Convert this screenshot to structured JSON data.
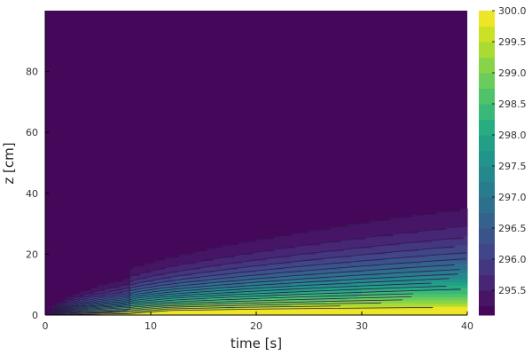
{
  "chart_data": {
    "type": "heatmap",
    "subtype": "filled-contour",
    "title": "",
    "xlabel": "time [s]",
    "ylabel": "z [cm]",
    "xlim": [
      0,
      40
    ],
    "ylim": [
      0,
      100
    ],
    "x_ticks": [
      0,
      10,
      20,
      30,
      40
    ],
    "y_ticks": [
      0,
      20,
      40,
      60,
      80
    ],
    "x_tick_labels": [
      "0",
      "10",
      "20",
      "30",
      "40"
    ],
    "y_tick_labels": [
      "0",
      "20",
      "40",
      "60",
      "80"
    ],
    "grid": true,
    "colormap": "viridis",
    "colorbar": {
      "min": 295.1,
      "max": 300.0,
      "tick_values": [
        295.5,
        296.0,
        296.5,
        297.0,
        297.5,
        298.0,
        298.5,
        299.0,
        299.5,
        300.0
      ],
      "tick_labels": [
        "295.5",
        "296.0",
        "296.5",
        "297.0",
        "297.5",
        "298.0",
        "298.5",
        "299.0",
        "299.5",
        "300.0"
      ]
    },
    "contour_levels": [
      295.25,
      295.5,
      295.75,
      296.0,
      296.25,
      296.5,
      296.75,
      297.0,
      297.25,
      297.5,
      297.75,
      298.0,
      298.25,
      298.5,
      298.75,
      299.0,
      299.25,
      299.5,
      299.75
    ],
    "field": {
      "description": "Temperature field: heating from z=0 boundary; front speed changes at t≈8 s",
      "boundary_temperature": 300.0,
      "initial_temperature": 295.0,
      "break_time": 8
    }
  },
  "colors": {
    "contour_line": "#2b1a4a",
    "axis": "#000000",
    "grid": "#e6e6e6"
  }
}
